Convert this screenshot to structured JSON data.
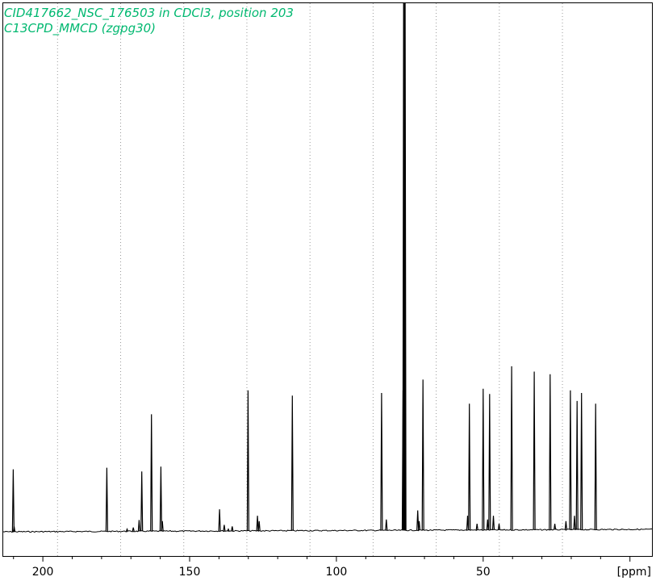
{
  "chart_data": {
    "type": "line",
    "title_lines": [
      "CID417662_NSC_176503 in CDCl3, position 203",
      "C13CPD_MMCD (zgpg30)"
    ],
    "xlabel": "[ppm]",
    "ylabel": "",
    "x_reversed": true,
    "xlim": [
      213.5,
      -7.5
    ],
    "ylim": [
      0,
      100
    ],
    "x_ticks": [
      200,
      150,
      100,
      50
    ],
    "grid": "vertical-dotted",
    "grid_x": [
      195,
      173.5,
      152,
      130.5,
      109,
      87.5,
      66,
      44.5,
      23
    ],
    "baseline": 1.3,
    "series": [
      {
        "color": "#000000",
        "peaks": [
          {
            "x": 210.1,
            "y": 12.7
          },
          {
            "x": 209.8,
            "y": 2.0
          },
          {
            "x": 178.2,
            "y": 13.0
          },
          {
            "x": 171.3,
            "y": 1.5
          },
          {
            "x": 169.2,
            "y": 1.8
          },
          {
            "x": 167.2,
            "y": 3.2
          },
          {
            "x": 166.3,
            "y": 12.3
          },
          {
            "x": 163.0,
            "y": 23.0
          },
          {
            "x": 159.8,
            "y": 13.2
          },
          {
            "x": 159.3,
            "y": 3.0
          },
          {
            "x": 139.8,
            "y": 5.2
          },
          {
            "x": 138.2,
            "y": 2.3
          },
          {
            "x": 136.8,
            "y": 1.5
          },
          {
            "x": 135.5,
            "y": 2.0
          },
          {
            "x": 130.1,
            "y": 27.5
          },
          {
            "x": 126.9,
            "y": 4.0
          },
          {
            "x": 126.3,
            "y": 3.0
          },
          {
            "x": 115.0,
            "y": 26.5
          },
          {
            "x": 84.6,
            "y": 27.0
          },
          {
            "x": 83.0,
            "y": 3.3
          },
          {
            "x": 77.3,
            "y": 27.5
          },
          {
            "x": 77.0,
            "y": 100
          },
          {
            "x": 76.7,
            "y": 100
          },
          {
            "x": 72.3,
            "y": 5.0
          },
          {
            "x": 71.8,
            "y": 3.0
          },
          {
            "x": 70.5,
            "y": 29.5
          },
          {
            "x": 55.3,
            "y": 4.0
          },
          {
            "x": 54.7,
            "y": 25.0
          },
          {
            "x": 52.1,
            "y": 2.5
          },
          {
            "x": 50.0,
            "y": 27.8
          },
          {
            "x": 48.5,
            "y": 3.3
          },
          {
            "x": 47.8,
            "y": 26.8
          },
          {
            "x": 46.5,
            "y": 4.0
          },
          {
            "x": 44.6,
            "y": 2.5
          },
          {
            "x": 40.3,
            "y": 32.0
          },
          {
            "x": 32.6,
            "y": 31.0
          },
          {
            "x": 27.2,
            "y": 30.5
          },
          {
            "x": 25.6,
            "y": 2.5
          },
          {
            "x": 21.8,
            "y": 3.0
          },
          {
            "x": 20.3,
            "y": 27.5
          },
          {
            "x": 18.9,
            "y": 4.0
          },
          {
            "x": 18.0,
            "y": 25.5
          },
          {
            "x": 16.5,
            "y": 27.0
          },
          {
            "x": 11.7,
            "y": 25.0
          }
        ]
      }
    ]
  }
}
